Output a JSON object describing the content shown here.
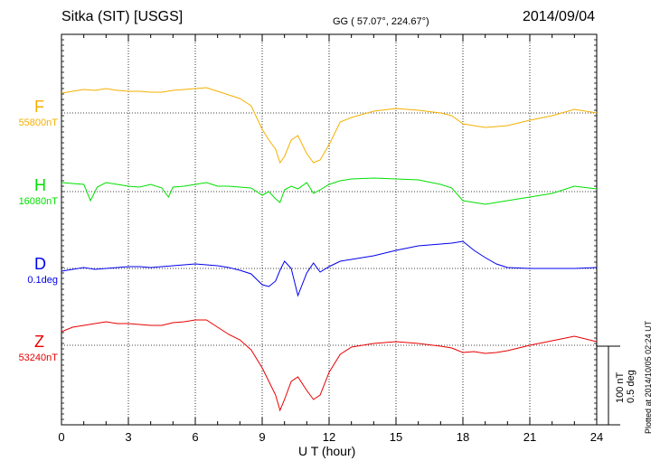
{
  "header": {
    "station": "Sitka (SIT)  [USGS]",
    "coords": "GG ( 57.07°, 224.67°)",
    "date": "2014/09/04"
  },
  "footer": {
    "plotted": "Plotted at 2014/10/05 02:24  UT",
    "scale_nt": "100 nT",
    "scale_deg": "0.5 deg"
  },
  "chart_data": {
    "type": "line",
    "xlabel": "U T (hour)",
    "xlim": [
      0,
      24
    ],
    "xticks": [
      "0",
      "3",
      "6",
      "9",
      "12",
      "15",
      "18",
      "21",
      "24"
    ],
    "grid": true,
    "series": [
      {
        "name": "F",
        "baseline_label": "55800nT",
        "color": "#f5b000",
        "baseline": 0,
        "x": [
          0,
          0.5,
          1,
          1.5,
          2,
          2.5,
          3,
          3.5,
          4,
          4.5,
          5,
          5.5,
          6,
          6.5,
          7,
          7.5,
          8,
          8.5,
          9,
          9.3,
          9.6,
          9.8,
          10,
          10.3,
          10.6,
          11,
          11.3,
          11.6,
          12,
          12.5,
          13,
          14,
          15,
          16,
          17,
          17.5,
          18,
          18.5,
          19,
          19.5,
          20,
          21,
          22,
          23,
          24
        ],
        "y": [
          22,
          24,
          26,
          25,
          27,
          25,
          24,
          24,
          23,
          23,
          25,
          26,
          27,
          28,
          24,
          20,
          16,
          8,
          -18,
          -30,
          -40,
          -55,
          -48,
          -30,
          -25,
          -45,
          -55,
          -52,
          -35,
          -10,
          -5,
          2,
          5,
          3,
          0,
          -3,
          -12,
          -14,
          -16,
          -15,
          -14,
          -8,
          -3,
          4,
          0
        ]
      },
      {
        "name": "H",
        "baseline_label": "16080nT",
        "color": "#00e000",
        "baseline": 0,
        "x": [
          0,
          0.5,
          1,
          1.3,
          1.6,
          2,
          2.5,
          3,
          3.5,
          4,
          4.5,
          4.8,
          5,
          5.5,
          6,
          6.5,
          7,
          7.5,
          8,
          8.5,
          9,
          9.3,
          9.6,
          9.8,
          10,
          10.3,
          10.6,
          11,
          11.3,
          11.6,
          12,
          12.5,
          13,
          14,
          15,
          16,
          17,
          17.5,
          18,
          18.5,
          19,
          19.5,
          20,
          21,
          22,
          23,
          24
        ],
        "y": [
          10,
          9,
          8,
          -10,
          5,
          10,
          8,
          6,
          5,
          8,
          4,
          -6,
          5,
          6,
          8,
          10,
          6,
          6,
          5,
          4,
          -4,
          0,
          -8,
          -12,
          2,
          6,
          3,
          10,
          -2,
          2,
          8,
          12,
          14,
          15,
          14,
          13,
          8,
          4,
          -10,
          -12,
          -14,
          -12,
          -10,
          -6,
          -2,
          6,
          3
        ]
      },
      {
        "name": "D",
        "baseline_label": "0.1deg",
        "color": "#0000ee",
        "baseline": 0,
        "x": [
          0,
          0.5,
          1,
          1.5,
          2,
          2.5,
          3,
          3.5,
          4,
          4.5,
          5,
          5.5,
          6,
          6.5,
          7,
          7.5,
          8,
          8.5,
          9,
          9.3,
          9.6,
          9.8,
          10,
          10.3,
          10.6,
          11,
          11.3,
          11.6,
          12,
          12.5,
          13,
          14,
          15,
          16,
          17,
          17.5,
          18,
          18.5,
          19,
          19.5,
          20,
          21,
          22,
          23,
          24
        ],
        "y": [
          -3,
          -1,
          1,
          -1,
          0,
          1,
          2,
          2,
          1,
          2,
          3,
          4,
          5,
          4,
          3,
          1,
          -2,
          -6,
          -18,
          -20,
          -14,
          -2,
          8,
          0,
          -30,
          -5,
          6,
          -4,
          2,
          8,
          10,
          14,
          20,
          25,
          27,
          28,
          30,
          20,
          12,
          5,
          1,
          0,
          0,
          0,
          1
        ]
      },
      {
        "name": "Z",
        "baseline_label": "53240nT",
        "color": "#e80000",
        "baseline": 0,
        "x": [
          0,
          0.5,
          1,
          1.5,
          2,
          2.5,
          3,
          3.5,
          4,
          4.5,
          5,
          5.5,
          6,
          6.5,
          7,
          7.5,
          8,
          8.5,
          9,
          9.3,
          9.6,
          9.8,
          10,
          10.3,
          10.6,
          11,
          11.3,
          11.6,
          12,
          12.5,
          13,
          14,
          15,
          16,
          17,
          17.5,
          18,
          18.5,
          19,
          19.5,
          20,
          21,
          22,
          23,
          24
        ],
        "y": [
          15,
          20,
          22,
          24,
          26,
          24,
          24,
          23,
          22,
          22,
          25,
          26,
          28,
          28,
          20,
          12,
          6,
          -5,
          -25,
          -40,
          -55,
          -72,
          -60,
          -40,
          -35,
          -50,
          -60,
          -55,
          -30,
          -10,
          -2,
          2,
          4,
          2,
          -1,
          -3,
          -8,
          -7,
          -9,
          -8,
          -6,
          0,
          5,
          10,
          4
        ]
      }
    ]
  }
}
